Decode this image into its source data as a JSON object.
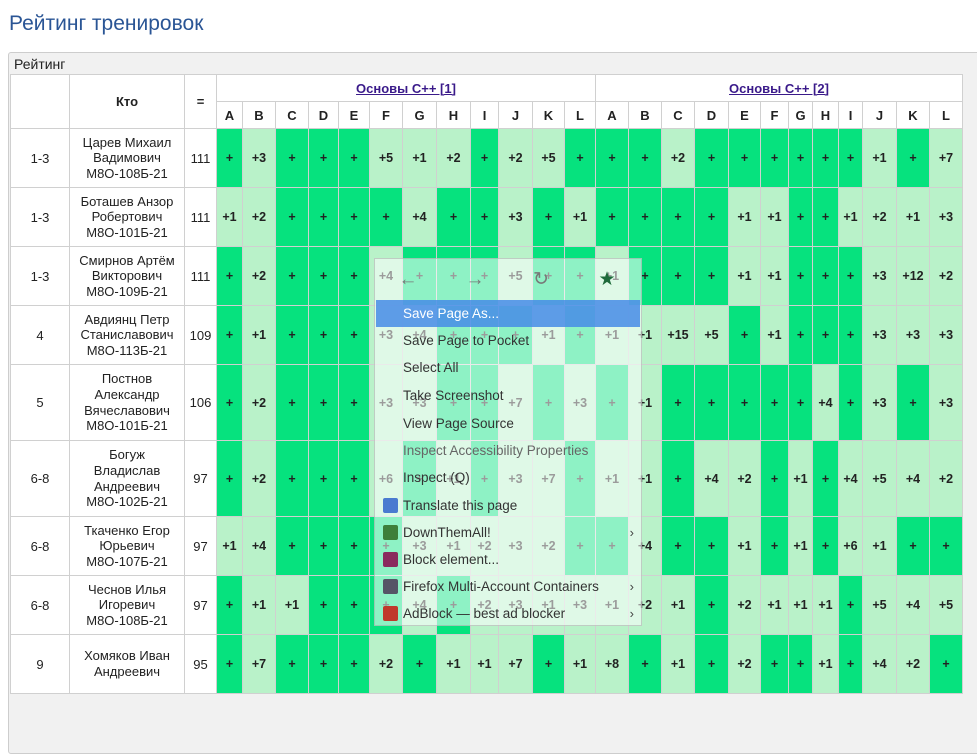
{
  "page_title": "Рейтинг тренировок",
  "panel_title": "Рейтинг",
  "header": {
    "col_rank": "",
    "col_who": "Кто",
    "col_eq": "=",
    "contests": [
      "Основы C++ [1]",
      "Основы C++ [2]"
    ],
    "problems1": [
      "A",
      "B",
      "C",
      "D",
      "E",
      "F",
      "G",
      "H",
      "I",
      "J",
      "K",
      "L"
    ],
    "problems2": [
      "A",
      "B",
      "C",
      "D",
      "E",
      "F",
      "G",
      "H",
      "I",
      "J",
      "K",
      "L"
    ]
  },
  "rows": [
    {
      "rank": "1-3",
      "name": [
        "Царев Михаил",
        "Вадимович",
        "М8О-108Б-21"
      ],
      "total": "111",
      "c1": [
        "+",
        "+3",
        "+",
        "+",
        "+",
        "+5",
        "+1",
        "+2",
        "+",
        "+2",
        "+5",
        "+"
      ],
      "c2": [
        "+",
        "+",
        "+2",
        "+",
        "+",
        "+",
        "+",
        "+",
        "+",
        "+1",
        "+",
        "+7"
      ]
    },
    {
      "rank": "1-3",
      "name": [
        "Боташев Анзор",
        "Робертович",
        "М8О-101Б-21"
      ],
      "total": "111",
      "c1": [
        "+1",
        "+2",
        "+",
        "+",
        "+",
        "+",
        "+4",
        "+",
        "+",
        "+3",
        "+",
        "+1"
      ],
      "c2": [
        "+",
        "+",
        "+",
        "+",
        "+1",
        "+1",
        "+",
        "+",
        "+1",
        "+2",
        "+1",
        "+3"
      ]
    },
    {
      "rank": "1-3",
      "name": [
        "Смирнов Артём",
        "Викторович",
        "М8О-109Б-21"
      ],
      "total": "111",
      "c1": [
        "+",
        "+2",
        "+",
        "+",
        "+",
        "+4",
        "+",
        "+",
        "+",
        "+5",
        "+",
        "+"
      ],
      "c2": [
        "+1",
        "+",
        "+",
        "+",
        "+1",
        "+1",
        "+",
        "+",
        "+",
        "+3",
        "+12",
        "+2"
      ]
    },
    {
      "rank": "4",
      "name": [
        "Авдиянц Петр",
        "Станиславович",
        "М8О-113Б-21"
      ],
      "total": "109",
      "c1": [
        "+",
        "+1",
        "+",
        "+",
        "+",
        "+3",
        "+4",
        "+",
        "+",
        "+",
        "+1",
        "+"
      ],
      "c2": [
        "+1",
        "+1",
        "+15",
        "+5",
        "+",
        "+1",
        "+",
        "+",
        "+",
        "+3",
        "+3",
        "+3"
      ]
    },
    {
      "rank": "5",
      "name": [
        "Постнов",
        "Александр",
        "Вячеславович",
        "М8О-101Б-21"
      ],
      "total": "106",
      "c1": [
        "+",
        "+2",
        "+",
        "+",
        "+",
        "+3",
        "+3",
        "+",
        "+",
        "+7",
        "+",
        "+3"
      ],
      "c2": [
        "+",
        "+1",
        "+",
        "+",
        "+",
        "+",
        "+",
        "+4",
        "+",
        "+3",
        "+",
        "+3"
      ]
    },
    {
      "rank": "6-8",
      "name": [
        "Богуж",
        "Владислав",
        "Андреевич",
        "М8О-102Б-21"
      ],
      "total": "97",
      "c1": [
        "+",
        "+2",
        "+",
        "+",
        "+",
        "+6",
        "+",
        "+1",
        "+",
        "+3",
        "+7",
        "+"
      ],
      "c2": [
        "+1",
        "+1",
        "+",
        "+4",
        "+2",
        "+",
        "+1",
        "+",
        "+4",
        "+5",
        "+4",
        "+2"
      ]
    },
    {
      "rank": "6-8",
      "name": [
        "Ткаченко Егор",
        "Юрьевич",
        "М8О-107Б-21"
      ],
      "total": "97",
      "c1": [
        "+1",
        "+4",
        "+",
        "+",
        "+",
        "+",
        "+3",
        "+1",
        "+2",
        "+3",
        "+2",
        "+"
      ],
      "c2": [
        "+",
        "+4",
        "+",
        "+",
        "+1",
        "+",
        "+1",
        "+",
        "+6",
        "+1",
        "+",
        "+"
      ]
    },
    {
      "rank": "6-8",
      "name": [
        "Чеснов Илья",
        "Игоревич",
        "М8О-108Б-21"
      ],
      "total": "97",
      "c1": [
        "+",
        "+1",
        "+1",
        "+",
        "+",
        "+",
        "+4",
        "+",
        "+2",
        "+3",
        "+1",
        "+3"
      ],
      "c2": [
        "+1",
        "+2",
        "+1",
        "+",
        "+2",
        "+1",
        "+1",
        "+1",
        "+",
        "+5",
        "+4",
        "+5"
      ]
    },
    {
      "rank": "9",
      "name": [
        "Хомяков Иван",
        "Андреевич"
      ],
      "total": "95",
      "c1": [
        "+",
        "+7",
        "+",
        "+",
        "+",
        "+2",
        "+",
        "+1",
        "+1",
        "+7",
        "+",
        "+1"
      ],
      "c2": [
        "+8",
        "+",
        "+1",
        "+",
        "+2",
        "+",
        "+",
        "+1",
        "+",
        "+4",
        "+2",
        "+"
      ]
    }
  ],
  "context_menu": {
    "nav": [
      "back-icon",
      "forward-icon",
      "reload-icon",
      "bookmark-star-icon"
    ],
    "items": [
      {
        "label": "Save Page As...",
        "icon": ""
      },
      {
        "label": "Save Page to Pocket",
        "icon": ""
      },
      {
        "label": "Select All",
        "icon": ""
      },
      {
        "label": "Take Screenshot",
        "icon": ""
      },
      {
        "label": "View Page Source",
        "icon": ""
      },
      {
        "label": "Inspect Accessibility Properties",
        "icon": ""
      },
      {
        "label": "Inspect (Q)",
        "icon": ""
      },
      {
        "label": "Translate this page",
        "icon": "translate-icon"
      },
      {
        "label": "DownThemAll!",
        "icon": "downthemall-icon"
      },
      {
        "label": "Block element...",
        "icon": "ublock-icon"
      },
      {
        "label": "Firefox Multi-Account Containers",
        "icon": "containers-icon"
      },
      {
        "label": "AdBlock — best ad blocker",
        "icon": "adblock-icon"
      }
    ]
  },
  "colors": {
    "full": "#06e27e",
    "partial": "#b9f2c9",
    "title": "#2a5595",
    "highlight": "#4a90e2"
  }
}
